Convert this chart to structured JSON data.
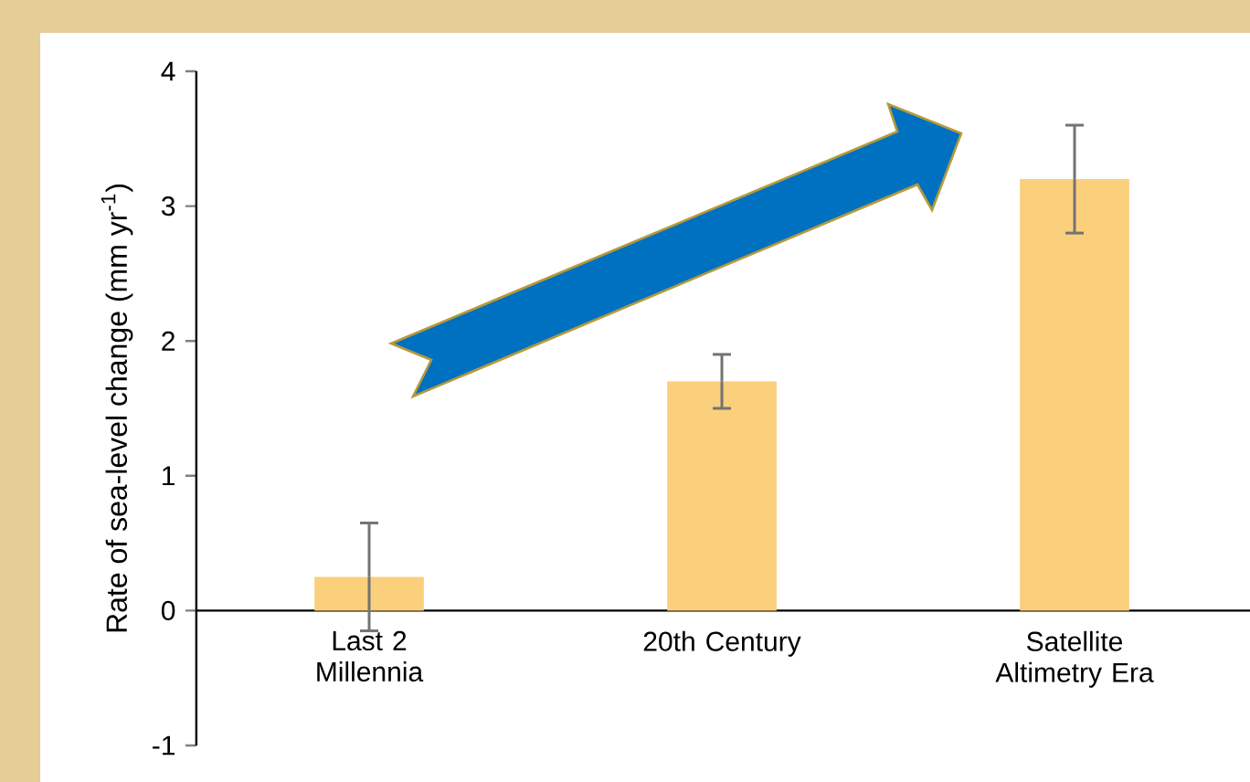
{
  "chart_data": {
    "type": "bar",
    "ylabel": "Rate of sea-level change (mm yr$^{-1}$)",
    "categories": [
      "Last 2 Millennia",
      "20th Century",
      "Satellite Altimetry Era"
    ],
    "values": [
      0.25,
      1.7,
      3.2
    ],
    "errors": [
      0.4,
      0.2,
      0.4
    ],
    "color": "#fbd07c",
    "ylim": [
      -1,
      4
    ],
    "yticks": [
      -1,
      0,
      1,
      2,
      3,
      4
    ]
  }
}
